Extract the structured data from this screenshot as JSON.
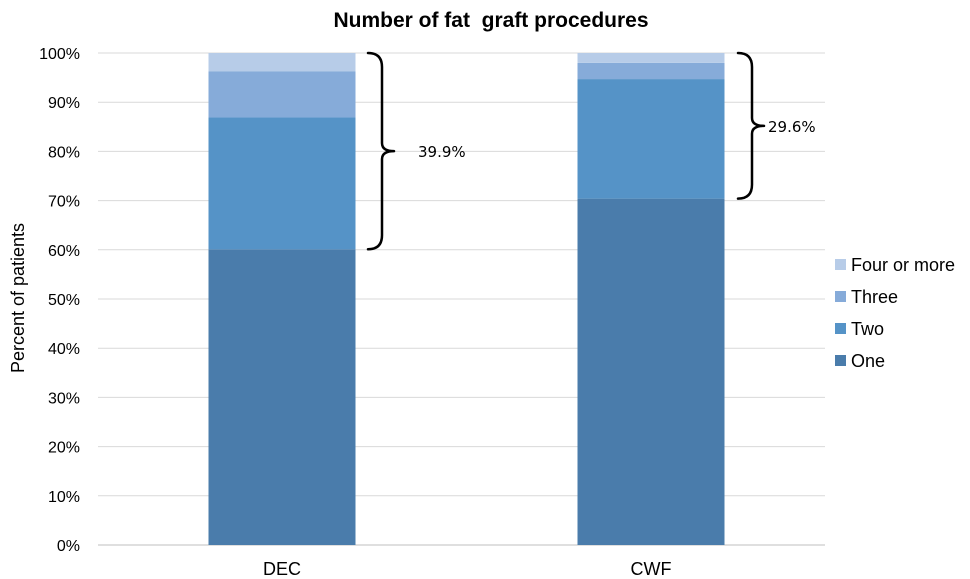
{
  "chart_data": {
    "type": "bar",
    "stacked": true,
    "title": "Number of fat  graft procedures",
    "xlabel": "",
    "ylabel": "Percent of patients",
    "ylim": [
      0,
      100
    ],
    "yticks": [
      "0%",
      "10%",
      "20%",
      "30%",
      "40%",
      "50%",
      "60%",
      "70%",
      "80%",
      "90%",
      "100%"
    ],
    "grid": true,
    "legend_position": "right",
    "categories": [
      "DEC",
      "CWF"
    ],
    "series": [
      {
        "name": "One",
        "values": [
          60.1,
          70.4
        ],
        "color": "#4a7cab"
      },
      {
        "name": "Two",
        "values": [
          26.8,
          24.3
        ],
        "color": "#5593c7"
      },
      {
        "name": "Three",
        "values": [
          9.4,
          3.3
        ],
        "color": "#86abd9"
      },
      {
        "name": "Four or more",
        "values": [
          3.7,
          2.0
        ],
        "color": "#b7cce8"
      }
    ],
    "annotations": [
      {
        "category": "DEC",
        "text": "39.9%",
        "from": 60.1,
        "to": 100
      },
      {
        "category": "CWF",
        "text": "29.6%",
        "from": 70.4,
        "to": 100
      }
    ]
  }
}
